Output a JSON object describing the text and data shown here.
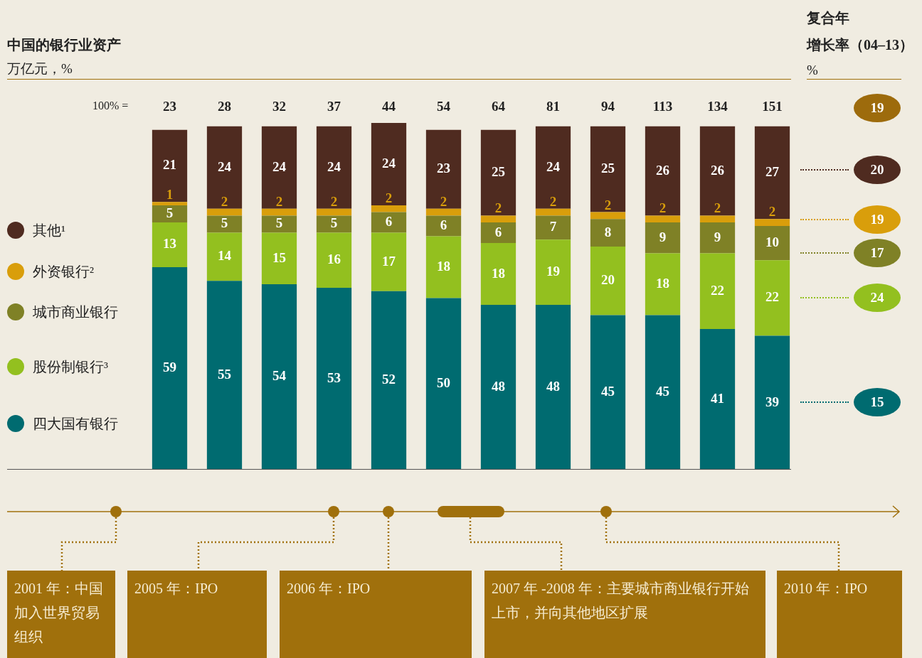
{
  "chart_data": {
    "type": "bar",
    "stacked": true,
    "data_labels": true,
    "legend": "left",
    "title": "中国的银行业资产",
    "subtitle": "万亿元，%",
    "categories": [
      null,
      null,
      null,
      null,
      null,
      null,
      null,
      null,
      null,
      null,
      null,
      null
    ],
    "series": [
      {
        "name": "四大国有银行",
        "color": "#006b70",
        "values": [
          59,
          55,
          54,
          53,
          52,
          50,
          48,
          48,
          45,
          45,
          41,
          39
        ]
      },
      {
        "name": "股份制银行³",
        "color": "#93c01f",
        "values": [
          13,
          14,
          15,
          16,
          17,
          18,
          18,
          19,
          20,
          18,
          22,
          22
        ]
      },
      {
        "name": "城市商业银行",
        "color": "#7f8126",
        "values": [
          5,
          5,
          5,
          5,
          6,
          6,
          6,
          7,
          8,
          9,
          9,
          10
        ]
      },
      {
        "name": "外资银行²",
        "color": "#d99e0b",
        "values": [
          1,
          2,
          2,
          2,
          2,
          2,
          2,
          2,
          2,
          2,
          2,
          2
        ]
      },
      {
        "name": "其他¹",
        "color": "#4f2b20",
        "values": [
          21,
          24,
          24,
          24,
          24,
          23,
          25,
          24,
          25,
          26,
          26,
          27
        ]
      }
    ],
    "annotations": [
      "100% =",
      "23",
      "28",
      "32",
      "37",
      "44",
      "54",
      "64",
      "81",
      "94",
      "113",
      "134",
      "151",
      "复合年",
      "增长率（04–13）",
      "%",
      "19",
      "20",
      "19",
      "17",
      "24",
      "15",
      "2001 年：中国加入世界贸易组织",
      "2005 年：IPO",
      "2006 年：IPO",
      "2007 年 -2008 年：主要城市商业银行开始上市，并向其他地区扩展",
      "2010 年：IPO"
    ]
  }
}
